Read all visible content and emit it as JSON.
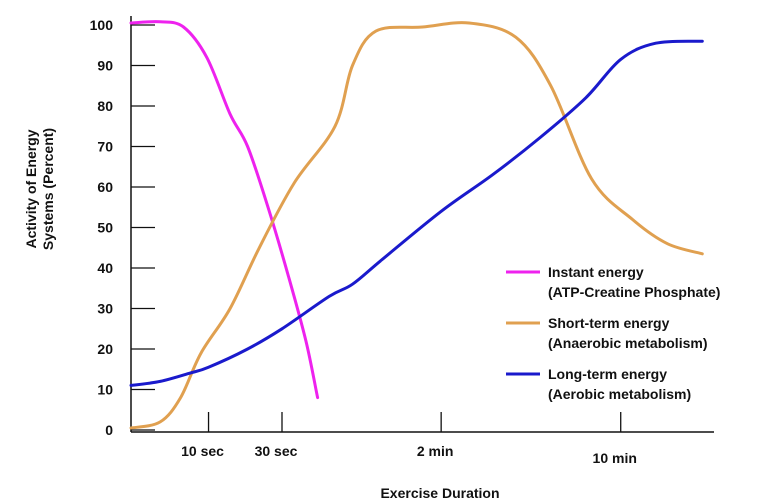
{
  "chart_data": {
    "type": "line",
    "title": "",
    "ylabel_lines": [
      "Activity of Energy",
      "Systems (Percent)"
    ],
    "xlabel": "Exercise Duration",
    "ylim": [
      0,
      100
    ],
    "yticks": [
      0,
      10,
      20,
      30,
      40,
      50,
      60,
      70,
      80,
      90,
      100
    ],
    "xticks": [
      {
        "label": "10 sec",
        "t": 0.133
      },
      {
        "label": "30 sec",
        "t": 0.259
      },
      {
        "label": "2 min",
        "t": 0.532
      },
      {
        "label": "10 min",
        "t": 0.84
      }
    ],
    "grid": false,
    "legend_position": "right",
    "series": [
      {
        "name_lines": [
          "Instant energy",
          "(ATP-Creatine Phosphate)"
        ],
        "color": "#ee22ee",
        "points": [
          [
            0.0,
            100.5
          ],
          [
            0.05,
            100.8
          ],
          [
            0.09,
            99.5
          ],
          [
            0.13,
            92
          ],
          [
            0.17,
            78
          ],
          [
            0.2,
            70
          ],
          [
            0.235,
            55
          ],
          [
            0.27,
            38
          ],
          [
            0.3,
            22
          ],
          [
            0.32,
            8
          ]
        ]
      },
      {
        "name_lines": [
          "Short-term energy",
          "(Anaerobic metabolism)"
        ],
        "color": "#e0a050",
        "points": [
          [
            0.0,
            0.5
          ],
          [
            0.05,
            2
          ],
          [
            0.085,
            8
          ],
          [
            0.12,
            19
          ],
          [
            0.17,
            30
          ],
          [
            0.22,
            45
          ],
          [
            0.28,
            61
          ],
          [
            0.35,
            75
          ],
          [
            0.38,
            90
          ],
          [
            0.42,
            98.5
          ],
          [
            0.5,
            99.5
          ],
          [
            0.58,
            100.5
          ],
          [
            0.66,
            97
          ],
          [
            0.72,
            85
          ],
          [
            0.79,
            62
          ],
          [
            0.86,
            52
          ],
          [
            0.92,
            46
          ],
          [
            0.98,
            43.5
          ]
        ]
      },
      {
        "name_lines": [
          "Long-term energy",
          "(Aerobic metabolism)"
        ],
        "color": "#1a1acc",
        "points": [
          [
            0.0,
            11
          ],
          [
            0.05,
            12
          ],
          [
            0.1,
            14
          ],
          [
            0.133,
            15.5
          ],
          [
            0.2,
            20
          ],
          [
            0.259,
            25
          ],
          [
            0.34,
            33
          ],
          [
            0.38,
            36
          ],
          [
            0.43,
            42
          ],
          [
            0.532,
            54
          ],
          [
            0.62,
            63
          ],
          [
            0.7,
            72
          ],
          [
            0.78,
            82
          ],
          [
            0.84,
            91.5
          ],
          [
            0.9,
            95.5
          ],
          [
            0.98,
            96
          ]
        ]
      }
    ]
  }
}
